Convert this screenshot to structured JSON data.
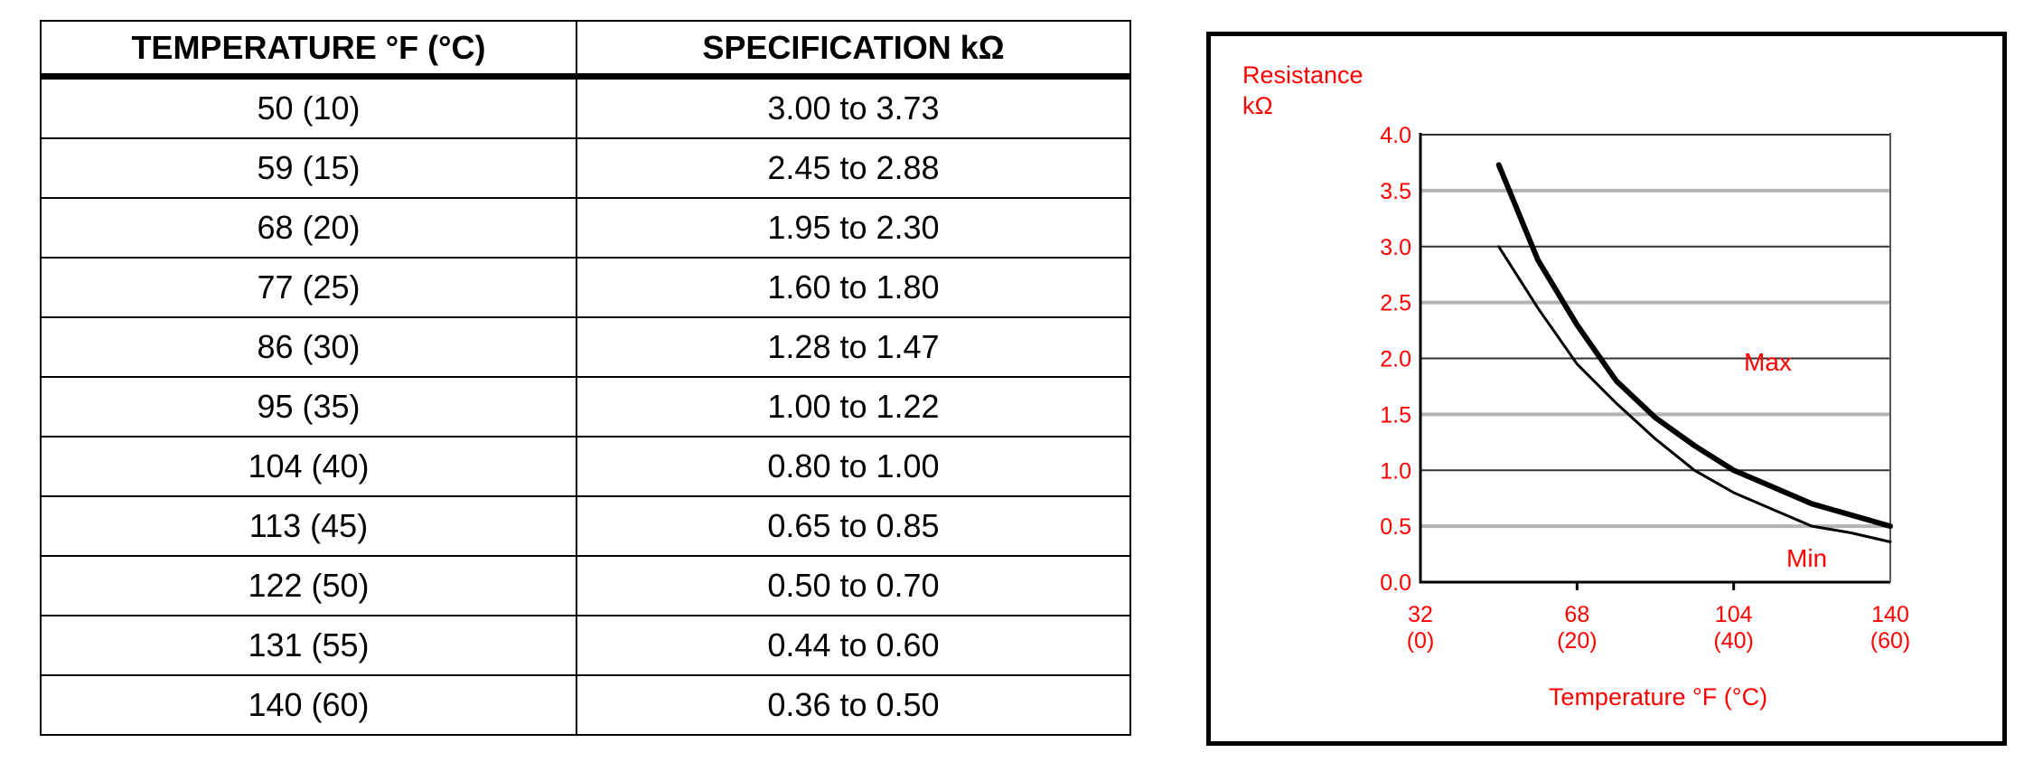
{
  "table": {
    "headers": [
      "TEMPERATURE °F (°C)",
      "SPECIFICATION kΩ"
    ],
    "rows": [
      [
        "50 (10)",
        "3.00 to 3.73"
      ],
      [
        "59 (15)",
        "2.45 to 2.88"
      ],
      [
        "68 (20)",
        "1.95 to 2.30"
      ],
      [
        "77 (25)",
        "1.60 to 1.80"
      ],
      [
        "86 (30)",
        "1.28 to 1.47"
      ],
      [
        "95 (35)",
        "1.00 to 1.22"
      ],
      [
        "104 (40)",
        "0.80 to 1.00"
      ],
      [
        "113 (45)",
        "0.65 to 0.85"
      ],
      [
        "122 (50)",
        "0.50 to 0.70"
      ],
      [
        "131 (55)",
        "0.44 to 0.60"
      ],
      [
        "140 (60)",
        "0.36 to 0.50"
      ]
    ]
  },
  "chart_data": {
    "type": "line",
    "ylabel_line1": "Resistance",
    "ylabel_line2": "kΩ",
    "xlabel": "Temperature °F (°C)",
    "xlim": [
      32,
      140
    ],
    "ylim": [
      0,
      4
    ],
    "y_ticks": [
      "0.0",
      "0.5",
      "1.0",
      "1.5",
      "2.0",
      "2.5",
      "3.0",
      "3.5",
      "4.0"
    ],
    "x_ticks": [
      {
        "value": 32,
        "label_f": "32",
        "label_c": "(0)"
      },
      {
        "value": 68,
        "label_f": "68",
        "label_c": "(20)"
      },
      {
        "value": 104,
        "label_f": "104",
        "label_c": "(40)"
      },
      {
        "value": 140,
        "label_f": "140",
        "label_c": "(60)"
      }
    ],
    "x": [
      50,
      59,
      68,
      77,
      86,
      95,
      104,
      113,
      122,
      131,
      140
    ],
    "series": [
      {
        "name": "Max",
        "values": [
          3.73,
          2.88,
          2.3,
          1.8,
          1.47,
          1.22,
          1.0,
          0.85,
          0.7,
          0.6,
          0.5
        ]
      },
      {
        "name": "Min",
        "values": [
          3.0,
          2.45,
          1.95,
          1.6,
          1.28,
          1.0,
          0.8,
          0.65,
          0.5,
          0.44,
          0.36
        ]
      }
    ],
    "grid": true,
    "colors": {
      "text": "#ff0000",
      "line": "#000000",
      "grid_dark": "#333333",
      "grid_light": "#b3b3b3"
    }
  }
}
